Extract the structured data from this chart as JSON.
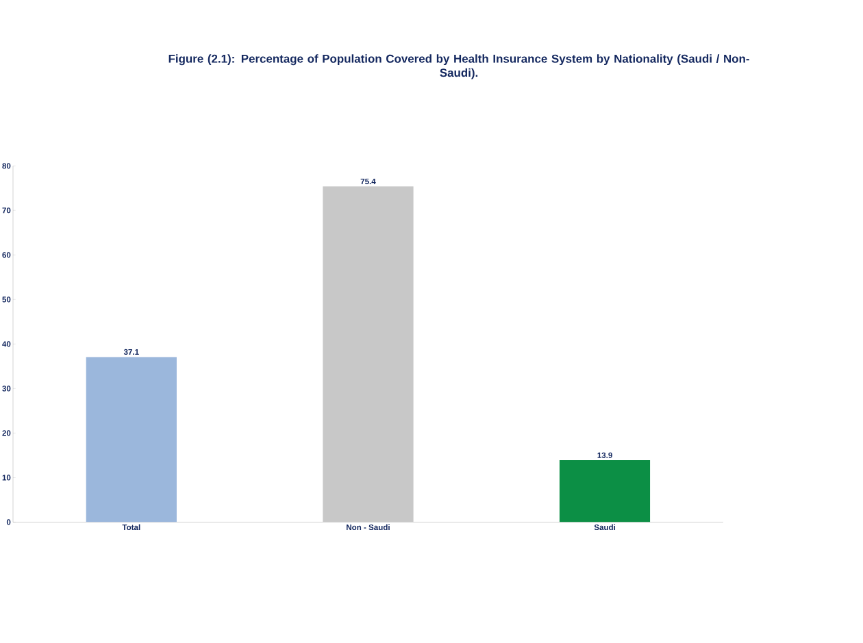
{
  "chart_data": {
    "type": "bar",
    "title": "Figure (2.1): Percentage of Population Covered by Health Insurance System by Nationality (Saudi / Non-Saudi).",
    "categories": [
      "Total",
      "Non - Saudi",
      "Saudi"
    ],
    "values": [
      37.1,
      75.4,
      13.9
    ],
    "colors": [
      "#9bb7dc",
      "#c8c8c8",
      "#0c8f45"
    ],
    "ylim": [
      0,
      80
    ],
    "yticks": [
      0,
      10,
      20,
      30,
      40,
      50,
      60,
      70,
      80
    ],
    "data_labels": true,
    "grid": false
  }
}
